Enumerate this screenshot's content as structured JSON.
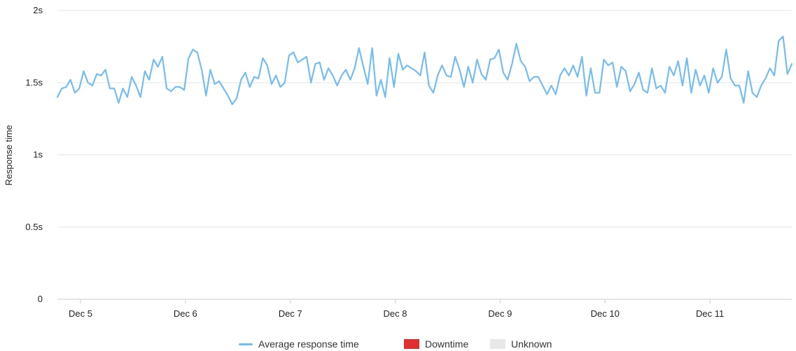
{
  "chart_data": {
    "type": "line",
    "ylabel": "Response time",
    "y_ticks": [
      "0",
      "0.5s",
      "1s",
      "1.5s",
      "2s"
    ],
    "ylim": [
      0,
      2
    ],
    "x_ticks": [
      "Dec 5",
      "Dec 6",
      "Dec 7",
      "Dec 8",
      "Dec 9",
      "Dec 10",
      "Dec 11"
    ],
    "x_range_days": [
      4.78,
      11.78
    ],
    "grid": true,
    "series": [
      {
        "name": "Average response time",
        "color": "#74bdf2",
        "points_per_day": 24,
        "values": [
          1.4,
          1.46,
          1.47,
          1.52,
          1.43,
          1.46,
          1.58,
          1.5,
          1.48,
          1.56,
          1.55,
          1.59,
          1.46,
          1.46,
          1.36,
          1.46,
          1.4,
          1.54,
          1.48,
          1.4,
          1.58,
          1.52,
          1.66,
          1.61,
          1.68,
          1.46,
          1.44,
          1.47,
          1.47,
          1.45,
          1.67,
          1.73,
          1.71,
          1.59,
          1.41,
          1.59,
          1.49,
          1.51,
          1.46,
          1.41,
          1.35,
          1.39,
          1.52,
          1.57,
          1.47,
          1.54,
          1.53,
          1.67,
          1.62,
          1.49,
          1.55,
          1.47,
          1.5,
          1.69,
          1.71,
          1.64,
          1.66,
          1.68,
          1.5,
          1.63,
          1.64,
          1.52,
          1.6,
          1.55,
          1.48,
          1.55,
          1.59,
          1.52,
          1.6,
          1.74,
          1.61,
          1.49,
          1.74,
          1.41,
          1.52,
          1.4,
          1.67,
          1.47,
          1.7,
          1.59,
          1.62,
          1.6,
          1.58,
          1.55,
          1.71,
          1.48,
          1.43,
          1.55,
          1.62,
          1.55,
          1.54,
          1.68,
          1.59,
          1.47,
          1.61,
          1.5,
          1.66,
          1.56,
          1.52,
          1.66,
          1.67,
          1.73,
          1.57,
          1.52,
          1.63,
          1.77,
          1.65,
          1.61,
          1.51,
          1.54,
          1.54,
          1.48,
          1.42,
          1.48,
          1.42,
          1.55,
          1.6,
          1.55,
          1.62,
          1.54,
          1.68,
          1.41,
          1.6,
          1.43,
          1.43,
          1.66,
          1.62,
          1.64,
          1.47,
          1.61,
          1.58,
          1.44,
          1.49,
          1.57,
          1.45,
          1.43,
          1.6,
          1.46,
          1.48,
          1.43,
          1.61,
          1.55,
          1.65,
          1.48,
          1.67,
          1.43,
          1.59,
          1.48,
          1.55,
          1.43,
          1.6,
          1.5,
          1.54,
          1.73,
          1.53,
          1.48,
          1.48,
          1.36,
          1.58,
          1.43,
          1.4,
          1.48,
          1.53,
          1.6,
          1.55,
          1.79,
          1.82,
          1.56,
          1.63
        ]
      }
    ]
  },
  "legend": {
    "items": [
      {
        "label": "Average response time",
        "color": "#74bdf2",
        "kind": "line"
      },
      {
        "label": "Downtime",
        "color": "#e12f2f",
        "kind": "box"
      },
      {
        "label": "Unknown",
        "color": "#e8e8e8",
        "kind": "box"
      }
    ]
  }
}
